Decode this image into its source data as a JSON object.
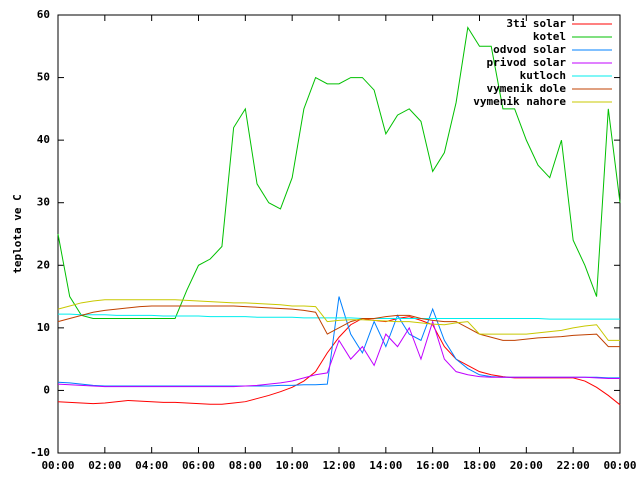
{
  "chart_data": {
    "type": "line",
    "ylabel": "teplota ve C",
    "legend": "top-right",
    "grid": false,
    "xlim": [
      0,
      24
    ],
    "ylim": [
      -10,
      60
    ],
    "yticks": [
      -10,
      0,
      10,
      20,
      30,
      40,
      50,
      60
    ],
    "xticks": [
      {
        "value": 0,
        "label": "00:00"
      },
      {
        "value": 2,
        "label": "02:00"
      },
      {
        "value": 4,
        "label": "04:00"
      },
      {
        "value": 6,
        "label": "06:00"
      },
      {
        "value": 8,
        "label": "08:00"
      },
      {
        "value": 10,
        "label": "10:00"
      },
      {
        "value": 12,
        "label": "12:00"
      },
      {
        "value": 14,
        "label": "14:00"
      },
      {
        "value": 16,
        "label": "16:00"
      },
      {
        "value": 18,
        "label": "18:00"
      },
      {
        "value": 20,
        "label": "20:00"
      },
      {
        "value": 22,
        "label": "22:00"
      },
      {
        "value": 24,
        "label": "00:00"
      }
    ],
    "x": [
      0,
      0.5,
      1,
      1.5,
      2,
      2.5,
      3,
      3.5,
      4,
      4.5,
      5,
      5.5,
      6,
      6.5,
      7,
      7.5,
      8,
      8.5,
      9,
      9.5,
      10,
      10.5,
      11,
      11.5,
      12,
      12.5,
      13,
      13.5,
      14,
      14.5,
      15,
      15.5,
      16,
      16.5,
      17,
      17.5,
      18,
      18.5,
      19,
      19.5,
      20,
      20.5,
      21,
      21.5,
      22,
      22.5,
      23,
      23.5,
      24
    ],
    "series": [
      {
        "name": "3ti solar",
        "color": "#ff0000",
        "values": [
          -1.8,
          -1.9,
          -2,
          -2.1,
          -2,
          -1.8,
          -1.6,
          -1.7,
          -1.8,
          -1.9,
          -1.9,
          -2,
          -2.1,
          -2.2,
          -2.2,
          -2,
          -1.8,
          -1.3,
          -0.8,
          -0.2,
          0.5,
          1.5,
          3,
          6,
          8.5,
          10.5,
          11.5,
          11.2,
          11,
          11.5,
          11.8,
          11.2,
          10.5,
          7,
          5,
          4,
          3,
          2.5,
          2.2,
          2,
          2,
          2,
          2,
          2,
          2,
          1.5,
          0.5,
          -0.8,
          -2.3
        ]
      },
      {
        "name": "kotel",
        "color": "#00c000",
        "values": [
          25,
          15,
          12,
          11.5,
          11.5,
          11.5,
          11.5,
          11.5,
          11.5,
          11.5,
          11.5,
          16,
          20,
          21,
          23,
          42,
          45,
          33,
          30,
          29,
          34,
          45,
          50,
          49,
          49,
          50,
          50,
          48,
          41,
          44,
          45,
          43,
          35,
          38,
          46,
          58,
          55,
          55,
          45,
          45,
          40,
          36,
          34,
          40,
          24,
          20,
          15,
          45,
          30
        ]
      },
      {
        "name": "odvod solar",
        "color": "#0080ff",
        "values": [
          1.3,
          1.2,
          1,
          0.8,
          0.7,
          0.7,
          0.7,
          0.7,
          0.7,
          0.7,
          0.7,
          0.7,
          0.7,
          0.7,
          0.7,
          0.7,
          0.7,
          0.7,
          0.7,
          0.8,
          0.8,
          0.9,
          0.9,
          1,
          15,
          9,
          6,
          11,
          7,
          12,
          9,
          8,
          13,
          8,
          5,
          3.5,
          2.5,
          2.2,
          2.1,
          2.1,
          2.1,
          2.1,
          2.1,
          2.1,
          2.1,
          2.1,
          2.1,
          2,
          2
        ]
      },
      {
        "name": "privod solar",
        "color": "#c000ff",
        "values": [
          1,
          0.9,
          0.8,
          0.7,
          0.6,
          0.6,
          0.6,
          0.6,
          0.6,
          0.6,
          0.6,
          0.6,
          0.6,
          0.6,
          0.6,
          0.6,
          0.7,
          0.8,
          1,
          1.2,
          1.5,
          2,
          2.5,
          2.8,
          8,
          5,
          7,
          4,
          9,
          7,
          10,
          5,
          11,
          5,
          3,
          2.5,
          2.2,
          2.1,
          2.1,
          2.1,
          2.1,
          2.1,
          2.1,
          2.1,
          2.1,
          2.1,
          2,
          1.9,
          1.9
        ]
      },
      {
        "name": "kutloch",
        "color": "#00eeee",
        "values": [
          12.2,
          12.2,
          12.1,
          12.1,
          12.1,
          12,
          12,
          12,
          12,
          11.9,
          11.9,
          11.9,
          11.9,
          11.8,
          11.8,
          11.8,
          11.8,
          11.7,
          11.7,
          11.7,
          11.7,
          11.6,
          11.6,
          11.6,
          11.6,
          11.6,
          11.5,
          11.5,
          11.5,
          11.5,
          11.5,
          11.5,
          11.5,
          11.5,
          11.5,
          11.5,
          11.5,
          11.5,
          11.5,
          11.5,
          11.5,
          11.5,
          11.4,
          11.4,
          11.4,
          11.4,
          11.4,
          11.4,
          11.4
        ]
      },
      {
        "name": "vymenik dole",
        "color": "#c04000",
        "values": [
          11,
          11.5,
          12,
          12.5,
          12.8,
          13,
          13.2,
          13.4,
          13.5,
          13.5,
          13.5,
          13.5,
          13.5,
          13.5,
          13.5,
          13.5,
          13.4,
          13.3,
          13.2,
          13.1,
          13,
          12.8,
          12.5,
          9,
          10,
          11,
          11.5,
          11.5,
          11.8,
          12,
          12,
          11.5,
          11.2,
          11,
          11,
          10,
          9,
          8.5,
          8,
          8,
          8.2,
          8.4,
          8.5,
          8.6,
          8.8,
          8.9,
          9,
          7,
          7
        ]
      },
      {
        "name": "vymenik nahore",
        "color": "#c8c800",
        "values": [
          13,
          13.5,
          14,
          14.3,
          14.5,
          14.5,
          14.5,
          14.5,
          14.5,
          14.5,
          14.5,
          14.4,
          14.3,
          14.2,
          14.1,
          14,
          14,
          13.9,
          13.8,
          13.7,
          13.5,
          13.5,
          13.4,
          11,
          11.2,
          11.3,
          11.3,
          11.2,
          11.1,
          11,
          11,
          10.8,
          10.6,
          10.5,
          10.8,
          11,
          9,
          9,
          9,
          9,
          9,
          9.2,
          9.4,
          9.6,
          10,
          10.3,
          10.5,
          8,
          8
        ]
      }
    ]
  }
}
